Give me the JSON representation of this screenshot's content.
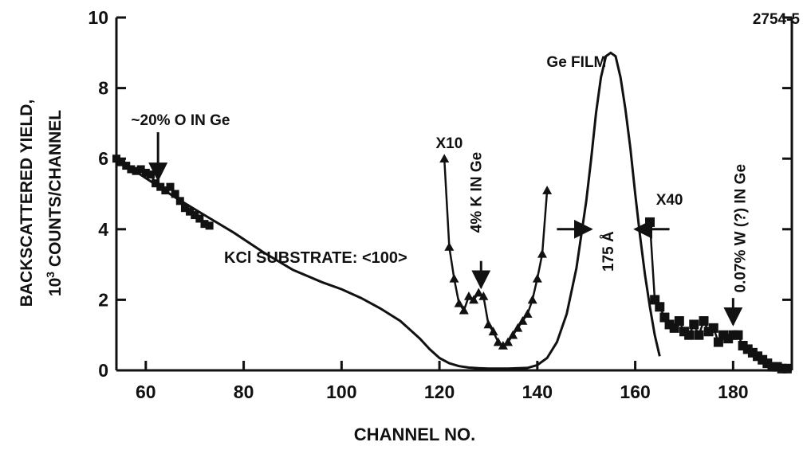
{
  "figure_id": "2754-5",
  "chart_data": {
    "type": "line",
    "xlabel": "CHANNEL NO.",
    "ylabel_line1": "BACKSCATTERED YIELD,",
    "ylabel_line2_base": "10",
    "ylabel_line2_sup": "3",
    "ylabel_line2_rest": " COUNTS/CHANNEL",
    "xlim": [
      54,
      192
    ],
    "ylim": [
      0,
      10
    ],
    "x_ticks": [
      60,
      80,
      100,
      120,
      140,
      160,
      180
    ],
    "x_tick_labels": [
      "60",
      "80",
      "100",
      "120",
      "140",
      "160",
      "180"
    ],
    "y_ticks": [
      0,
      2,
      4,
      6,
      8,
      10
    ],
    "y_tick_labels": [
      "0",
      "2",
      "4",
      "6",
      "8",
      "10"
    ],
    "series": [
      {
        "style": "line",
        "x": [
          54,
          60,
          66,
          72,
          78,
          84,
          90,
          96,
          100,
          104,
          108,
          112,
          116,
          118,
          120,
          122,
          124,
          126,
          128,
          130,
          134,
          138,
          140,
          142,
          144,
          146,
          148,
          150,
          151,
          152,
          153,
          154,
          155,
          156,
          157,
          158,
          159,
          160,
          161,
          162,
          163,
          164,
          165
        ],
        "y": [
          6.0,
          5.45,
          4.9,
          4.4,
          3.9,
          3.35,
          2.85,
          2.5,
          2.3,
          2.05,
          1.75,
          1.4,
          0.9,
          0.6,
          0.35,
          0.2,
          0.12,
          0.08,
          0.06,
          0.05,
          0.05,
          0.07,
          0.15,
          0.35,
          0.8,
          1.6,
          2.9,
          4.8,
          6.0,
          7.3,
          8.3,
          8.9,
          9.0,
          8.9,
          8.3,
          7.4,
          6.3,
          5.0,
          3.8,
          2.7,
          1.8,
          1.0,
          0.4
        ]
      },
      {
        "style": "triangle",
        "x": [
          121,
          122,
          123,
          124,
          125,
          126,
          127,
          128,
          129,
          130,
          131,
          132,
          133,
          134,
          135,
          136,
          137,
          138,
          139,
          140,
          141,
          142
        ],
        "y": [
          6.0,
          3.5,
          2.6,
          1.9,
          1.7,
          2.1,
          2.0,
          2.2,
          2.1,
          1.3,
          1.1,
          0.8,
          0.7,
          0.8,
          1.0,
          1.2,
          1.4,
          1.6,
          2.0,
          2.6,
          3.3,
          5.1
        ]
      },
      {
        "style": "square",
        "x": [
          163,
          164,
          165,
          166,
          167,
          168,
          169,
          170,
          171,
          172,
          173,
          174,
          175,
          176,
          177,
          178,
          179,
          180,
          181,
          182,
          183,
          184,
          185,
          186,
          187,
          188,
          189,
          190,
          191
        ],
        "y": [
          4.2,
          2.0,
          1.8,
          1.5,
          1.3,
          1.2,
          1.4,
          1.1,
          1.0,
          1.3,
          1.0,
          1.4,
          1.1,
          1.2,
          0.8,
          1.0,
          0.9,
          1.0,
          1.0,
          0.7,
          0.6,
          0.5,
          0.4,
          0.3,
          0.2,
          0.1,
          0.1,
          0.05,
          0.05
        ]
      },
      {
        "style": "dot",
        "x": [
          54,
          55,
          56,
          57,
          58,
          59,
          60,
          61,
          62,
          63,
          64,
          65,
          66,
          67,
          68,
          69,
          70,
          71,
          72,
          73
        ],
        "y": [
          6.0,
          5.9,
          5.8,
          5.7,
          5.65,
          5.7,
          5.6,
          5.55,
          5.3,
          5.2,
          5.1,
          5.2,
          5.0,
          4.8,
          4.6,
          4.5,
          4.4,
          4.3,
          4.15,
          4.1
        ]
      }
    ],
    "annotations": [
      {
        "id": "ge-film",
        "text": "Ge FILM",
        "x": 148,
        "y": 8.6,
        "rotate": 0,
        "anchor": "middle",
        "size": 19
      },
      {
        "id": "oxygen",
        "text": "~20% O IN Ge",
        "x": 57,
        "y": 6.95,
        "rotate": 0,
        "anchor": "start",
        "size": 19
      },
      {
        "id": "x10",
        "text": "X10",
        "x": 122,
        "y": 6.3,
        "rotate": 0,
        "anchor": "middle",
        "size": 19
      },
      {
        "id": "potassium",
        "text": "4% K IN Ge",
        "x": 128.5,
        "y": 3.9,
        "rotate": -90,
        "anchor": "start",
        "size": 19
      },
      {
        "id": "thickness",
        "text": "175 Å",
        "x": 155.5,
        "y": 2.8,
        "rotate": -90,
        "anchor": "start",
        "size": 19
      },
      {
        "id": "x40",
        "text": "X40",
        "x": 167,
        "y": 4.7,
        "rotate": 0,
        "anchor": "middle",
        "size": 19
      },
      {
        "id": "tungsten",
        "text": "0.07% W (?) IN Ge",
        "x": 182.5,
        "y": 2.2,
        "rotate": -90,
        "anchor": "start",
        "size": 19
      },
      {
        "id": "substrate",
        "text": "KCl SUBSTRATE: <100>",
        "x": 76,
        "y": 3.05,
        "rotate": 0,
        "anchor": "start",
        "size": 20
      }
    ],
    "arrows": [
      {
        "id": "arrow-oxygen",
        "from": [
          62.5,
          6.75
        ],
        "to": [
          62.5,
          5.4
        ]
      },
      {
        "id": "arrow-potassium",
        "from": [
          128.5,
          3.1
        ],
        "to": [
          128.5,
          2.35
        ]
      },
      {
        "id": "arrow-tungsten",
        "from": [
          180,
          2.05
        ],
        "to": [
          180,
          1.3
        ]
      },
      {
        "id": "fwhm-left-arrow",
        "from": [
          144,
          4.0
        ],
        "to": [
          151,
          4.0
        ]
      },
      {
        "id": "fwhm-right-arrow",
        "from": [
          167,
          4.0
        ],
        "to": [
          160,
          4.0
        ]
      }
    ]
  }
}
